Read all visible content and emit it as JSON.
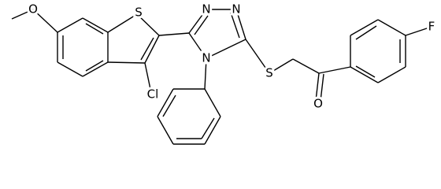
{
  "atoms": [
    {
      "label": "O"
    },
    {
      "label": "S"
    },
    {
      "label": "Cl"
    },
    {
      "label": "N"
    },
    {
      "label": "N"
    },
    {
      "label": "N"
    },
    {
      "label": "S"
    },
    {
      "label": "O"
    },
    {
      "label": "F"
    }
  ]
}
